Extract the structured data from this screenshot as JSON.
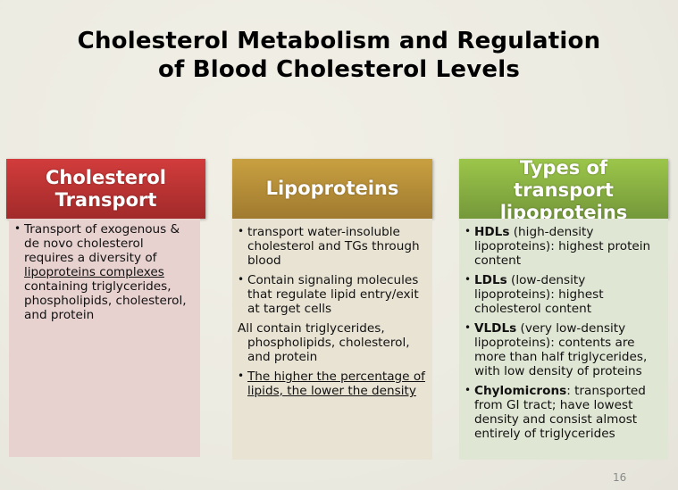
{
  "slide": {
    "title_line1": "Cholesterol Metabolism and Regulation",
    "title_line2": "of Blood Cholesterol Levels",
    "page_number": "16"
  },
  "colors": {
    "header_red": "#c03434",
    "header_gold": "#b88e38",
    "header_green": "#88b042",
    "body_red": "#e8d2d0",
    "body_gold": "#e9e3d4",
    "body_green": "#e0e6d4"
  },
  "columns": [
    {
      "header_line1": "Cholesterol",
      "header_line2": "Transport",
      "items": [
        {
          "part1": "Transport of exogenous & de novo cholesterol requires a diversity of ",
          "underlined": "lipoproteins complexes ",
          "part2": "containing triglycerides, phospholipids, cholesterol, and protein"
        }
      ]
    },
    {
      "header_line1": "Lipoproteins",
      "items": [
        {
          "text": "transport water-insoluble cholesterol and TGs through blood"
        },
        {
          "text": "Contain signaling molecules that regulate lipid entry/exit at target cells"
        },
        {
          "text": "All contain triglycerides, phospholipids, cholesterol, and protein"
        },
        {
          "text": "The higher the percentage of lipids, the lower the density"
        }
      ]
    },
    {
      "header_line1": "Types of",
      "header_line2": "transport",
      "header_line3": "lipoproteins",
      "items": [
        {
          "term": "HDLs",
          "text": " (high-density lipoproteins): highest protein content"
        },
        {
          "term": "LDLs",
          "text": " (low-density lipoproteins): highest cholesterol content"
        },
        {
          "term": "VLDLs",
          "text": " (very low-density lipoproteins): contents are more than half triglycerides, with low density of proteins"
        },
        {
          "term": "Chylomicrons",
          "text": ": transported from GI tract; have lowest density and consist almost entirely of triglycerides"
        }
      ]
    }
  ]
}
